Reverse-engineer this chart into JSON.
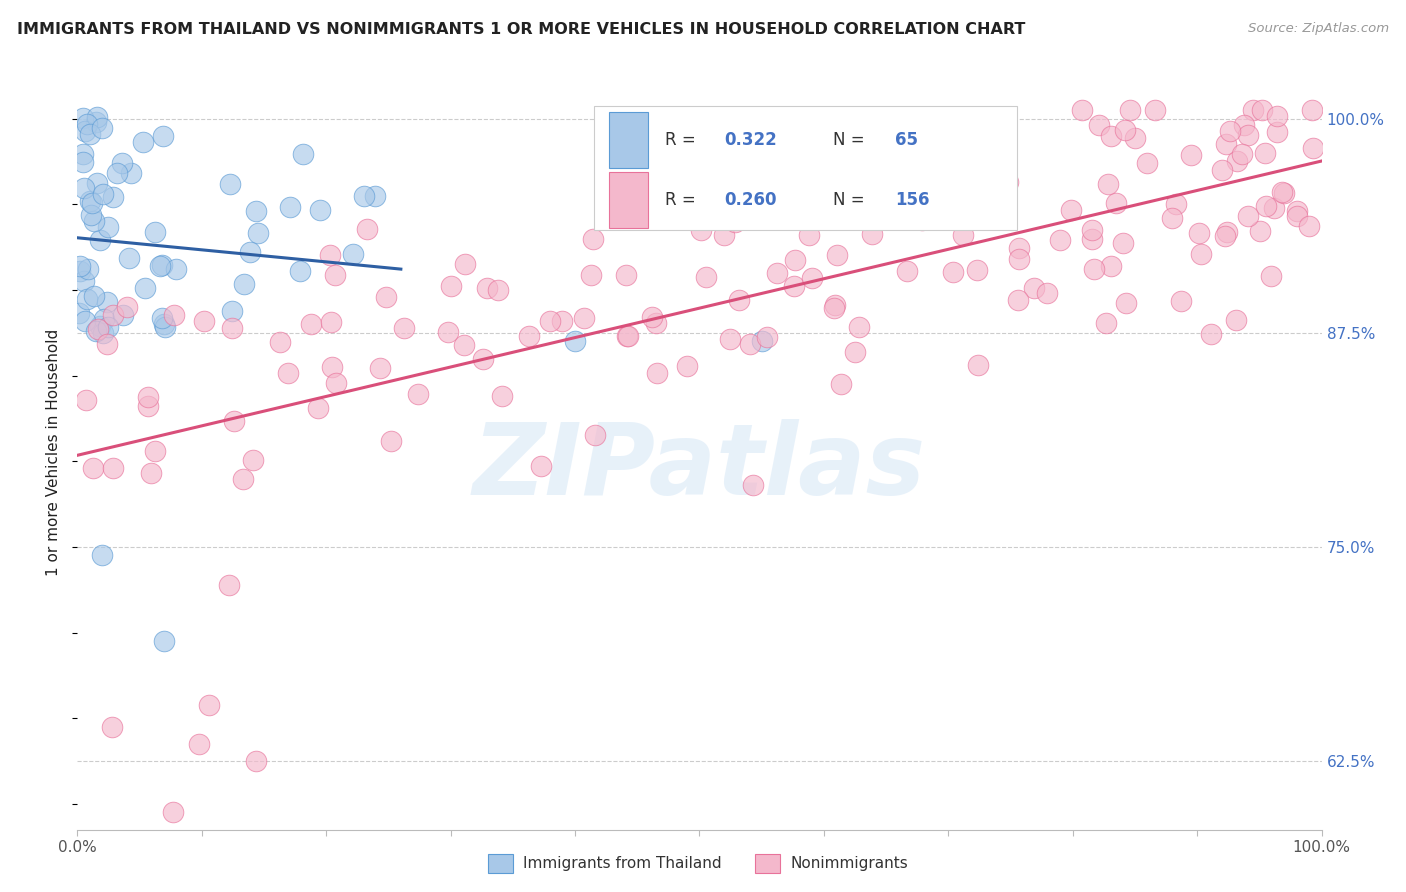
{
  "title": "IMMIGRANTS FROM THAILAND VS NONIMMIGRANTS 1 OR MORE VEHICLES IN HOUSEHOLD CORRELATION CHART",
  "source": "Source: ZipAtlas.com",
  "ylabel": "1 or more Vehicles in Household",
  "xlim": [
    0.0,
    1.0
  ],
  "ylim": [
    0.585,
    1.025
  ],
  "yticks": [
    0.625,
    0.75,
    0.875,
    1.0
  ],
  "ytick_labels": [
    "62.5%",
    "75.0%",
    "87.5%",
    "100.0%"
  ],
  "xticks": [
    0.0,
    0.1,
    0.2,
    0.3,
    0.4,
    0.5,
    0.6,
    0.7,
    0.8,
    0.9,
    1.0
  ],
  "xtick_labels_show": [
    "0.0%",
    "",
    "",
    "",
    "",
    "",
    "",
    "",
    "",
    "",
    "100.0%"
  ],
  "blue_R": 0.322,
  "blue_N": 65,
  "pink_R": 0.26,
  "pink_N": 156,
  "blue_fill_color": "#A8C8E8",
  "pink_fill_color": "#F4B8CC",
  "blue_edge_color": "#5B9BD5",
  "pink_edge_color": "#E8729A",
  "blue_line_color": "#2E5FA3",
  "pink_line_color": "#D94F7A",
  "title_color": "#222222",
  "source_color": "#999999",
  "ylabel_color": "#222222",
  "tick_color_right": "#4472C4",
  "xtick_label_color": "#555555",
  "watermark_color": "#D0E4F5",
  "watermark_alpha": 0.5,
  "background_color": "#ffffff",
  "grid_color": "#CCCCCC",
  "legend_box_color": "#F0F0F0",
  "legend_edge_color": "#CCCCCC"
}
